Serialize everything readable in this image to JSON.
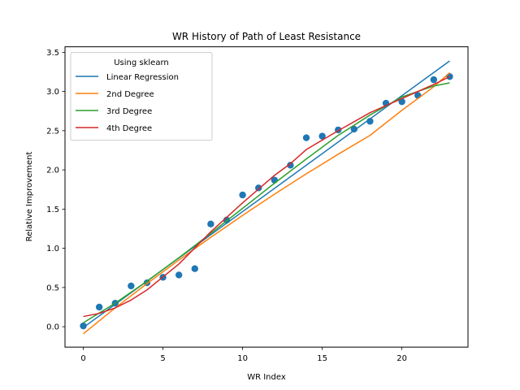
{
  "chart_data": {
    "type": "scatter",
    "title": "WR History of Path of Least Resistance",
    "xlabel": "WR Index",
    "ylabel": "Relative Improvement",
    "xlim": [
      -1.15,
      24.15
    ],
    "ylim": [
      -0.26,
      3.57
    ],
    "xticks": [
      0,
      5,
      10,
      15,
      20
    ],
    "yticks": [
      0.0,
      0.5,
      1.0,
      1.5,
      2.0,
      2.5,
      3.0,
      3.5
    ],
    "grid": false,
    "points": {
      "x": [
        0,
        1,
        2,
        3,
        4,
        5,
        6,
        7,
        8,
        9,
        10,
        11,
        12,
        13,
        14,
        15,
        16,
        17,
        18,
        19,
        20,
        21,
        22,
        23
      ],
      "y": [
        0.01,
        0.25,
        0.3,
        0.52,
        0.56,
        0.63,
        0.66,
        0.74,
        1.31,
        1.36,
        1.68,
        1.77,
        1.87,
        2.06,
        2.41,
        2.43,
        2.51,
        2.52,
        2.62,
        2.85,
        2.87,
        2.95,
        3.15,
        3.19
      ],
      "color": "#1f77b4"
    },
    "legend": {
      "title": "Using sklearn",
      "location": "upper left"
    },
    "series": [
      {
        "name": "Linear Regression",
        "color": "#1f77b4",
        "x": [
          0,
          23
        ],
        "y": [
          -0.01,
          3.39
        ]
      },
      {
        "name": "2nd Degree",
        "color": "#ff7f0e",
        "x": [
          0,
          2,
          4,
          6,
          8,
          10,
          12,
          14,
          16,
          18,
          20,
          22,
          23
        ],
        "y": [
          -0.09,
          0.24,
          0.55,
          0.85,
          1.14,
          1.42,
          1.69,
          1.95,
          2.2,
          2.44,
          2.76,
          3.06,
          3.24
        ]
      },
      {
        "name": "3rd Degree",
        "color": "#2ca02c",
        "x": [
          0,
          2,
          4,
          6,
          8,
          10,
          12,
          14,
          16,
          18,
          20,
          22,
          23
        ],
        "y": [
          0.05,
          0.3,
          0.58,
          0.88,
          1.19,
          1.51,
          1.83,
          2.14,
          2.44,
          2.7,
          2.93,
          3.07,
          3.11
        ]
      },
      {
        "name": "4th Degree",
        "color": "#d62728",
        "x": [
          0,
          1,
          2,
          3,
          4,
          6,
          8,
          10,
          12,
          13,
          14,
          16,
          18,
          20,
          22,
          23
        ],
        "y": [
          0.13,
          0.17,
          0.24,
          0.34,
          0.47,
          0.8,
          1.21,
          1.58,
          1.93,
          2.08,
          2.26,
          2.5,
          2.73,
          2.91,
          3.09,
          3.19
        ]
      }
    ]
  }
}
